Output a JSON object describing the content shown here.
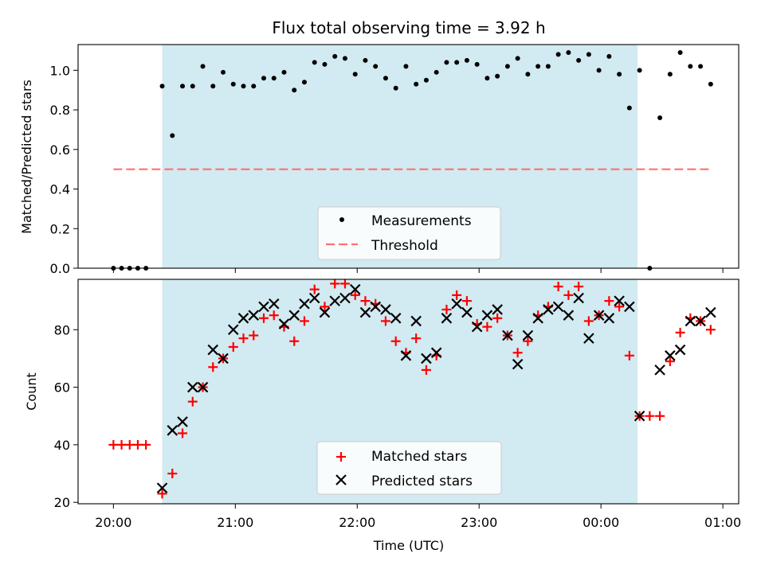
{
  "chart_data": [
    {
      "type": "scatter",
      "title": "Flux total observing time = 3.92 h",
      "xlabel": "",
      "ylabel": "Matched/Predicted stars",
      "ylim": [
        0,
        1.13
      ],
      "yticks": [
        "0.0",
        "0.2",
        "0.4",
        "0.6",
        "0.8",
        "1.0"
      ],
      "ytick_values": [
        0,
        0.2,
        0.4,
        0.6,
        0.8,
        1.0
      ],
      "xlim_hours": [
        19.71,
        25.13
      ],
      "xtick_hours": [
        20,
        21,
        22,
        23,
        24,
        25
      ],
      "shaded_span": {
        "start": "20:24",
        "end": "00:18",
        "color": "#add8e6"
      },
      "legend": {
        "placement": "lower center",
        "entries": [
          "Measurements",
          "Threshold"
        ]
      },
      "series": [
        {
          "name": "Measurements",
          "marker": "dot",
          "color": "#000000",
          "x": [
            "20:00",
            "20:04",
            "20:08",
            "20:12",
            "20:16",
            "20:24",
            "20:29",
            "20:34",
            "20:39",
            "20:44",
            "20:49",
            "20:54",
            "20:59",
            "21:04",
            "21:09",
            "21:14",
            "21:19",
            "21:24",
            "21:29",
            "21:34",
            "21:39",
            "21:44",
            "21:49",
            "21:54",
            "21:59",
            "22:04",
            "22:09",
            "22:14",
            "22:19",
            "22:24",
            "22:29",
            "22:34",
            "22:39",
            "22:44",
            "22:49",
            "22:54",
            "22:59",
            "23:04",
            "23:09",
            "23:14",
            "23:19",
            "23:24",
            "23:29",
            "23:34",
            "23:39",
            "23:44",
            "23:49",
            "23:54",
            "23:59",
            "00:04",
            "00:09",
            "00:14",
            "00:19",
            "00:24",
            "00:29",
            "00:34",
            "00:39",
            "00:44",
            "00:49",
            "00:54"
          ],
          "y": [
            0.0,
            0.0,
            0.0,
            0.0,
            0.0,
            0.92,
            0.67,
            0.92,
            0.92,
            1.02,
            0.92,
            0.99,
            0.93,
            0.92,
            0.92,
            0.96,
            0.96,
            0.99,
            0.9,
            0.94,
            1.04,
            1.03,
            1.07,
            1.06,
            0.98,
            1.05,
            1.02,
            0.96,
            0.91,
            1.02,
            0.93,
            0.95,
            0.99,
            1.04,
            1.04,
            1.05,
            1.03,
            0.96,
            0.97,
            1.02,
            1.06,
            0.98,
            1.02,
            1.02,
            1.08,
            1.09,
            1.05,
            1.08,
            1.0,
            1.07,
            0.98,
            0.81,
            1.0,
            0.0,
            0.76,
            0.98,
            1.09,
            1.02,
            1.02,
            0.93
          ]
        },
        {
          "name": "Threshold",
          "marker": "dashed-line",
          "color": "#ff7070",
          "x": [
            "20:00",
            "00:54"
          ],
          "y": [
            0.5,
            0.5
          ]
        }
      ]
    },
    {
      "type": "scatter",
      "title": "",
      "xlabel": "Time (UTC)",
      "ylabel": "Count",
      "ylim": [
        19.5,
        97.5
      ],
      "yticks": [
        "20",
        "40",
        "60",
        "80"
      ],
      "ytick_values": [
        20,
        40,
        60,
        80
      ],
      "xlim_hours": [
        19.71,
        25.13
      ],
      "xtick_hours": [
        20,
        21,
        22,
        23,
        24,
        25
      ],
      "xticks": [
        "20:00",
        "21:00",
        "22:00",
        "23:00",
        "00:00",
        "01:00"
      ],
      "shaded_span": {
        "start": "20:24",
        "end": "00:18",
        "color": "#add8e6"
      },
      "legend": {
        "placement": "lower center",
        "entries": [
          "Matched stars",
          "Predicted stars"
        ]
      },
      "series": [
        {
          "name": "Matched stars",
          "marker": "plus",
          "color": "#ff0000",
          "x": [
            "20:00",
            "20:04",
            "20:08",
            "20:12",
            "20:16",
            "20:24",
            "20:29",
            "20:34",
            "20:39",
            "20:44",
            "20:49",
            "20:54",
            "20:59",
            "21:04",
            "21:09",
            "21:14",
            "21:19",
            "21:24",
            "21:29",
            "21:34",
            "21:39",
            "21:44",
            "21:49",
            "21:54",
            "21:59",
            "22:04",
            "22:09",
            "22:14",
            "22:19",
            "22:24",
            "22:29",
            "22:34",
            "22:39",
            "22:44",
            "22:49",
            "22:54",
            "22:59",
            "23:04",
            "23:09",
            "23:14",
            "23:19",
            "23:24",
            "23:29",
            "23:34",
            "23:39",
            "23:44",
            "23:49",
            "23:54",
            "23:59",
            "00:04",
            "00:09",
            "00:14",
            "00:19",
            "00:24",
            "00:29",
            "00:34",
            "00:39",
            "00:44",
            "00:49",
            "00:54"
          ],
          "y": [
            40,
            40,
            40,
            40,
            40,
            23,
            30,
            44,
            55,
            60,
            67,
            70,
            74,
            77,
            78,
            84,
            85,
            81,
            76,
            83,
            94,
            88,
            96,
            96,
            92,
            90,
            89,
            83,
            76,
            72,
            77,
            66,
            71,
            87,
            92,
            90,
            82,
            81,
            84,
            78,
            72,
            76,
            85,
            88,
            95,
            92,
            95,
            83,
            85,
            90,
            88,
            71,
            50,
            50,
            50,
            69,
            79,
            84,
            83,
            80
          ]
        },
        {
          "name": "Predicted stars",
          "marker": "x",
          "color": "#000000",
          "x": [
            "20:24",
            "20:29",
            "20:34",
            "20:39",
            "20:44",
            "20:49",
            "20:54",
            "20:59",
            "21:04",
            "21:09",
            "21:14",
            "21:19",
            "21:24",
            "21:29",
            "21:34",
            "21:39",
            "21:44",
            "21:49",
            "21:54",
            "21:59",
            "22:04",
            "22:09",
            "22:14",
            "22:19",
            "22:24",
            "22:29",
            "22:34",
            "22:39",
            "22:44",
            "22:49",
            "22:54",
            "22:59",
            "23:04",
            "23:09",
            "23:14",
            "23:19",
            "23:24",
            "23:29",
            "23:34",
            "23:39",
            "23:44",
            "23:49",
            "23:54",
            "23:59",
            "00:04",
            "00:09",
            "00:14",
            "00:19",
            "00:29",
            "00:34",
            "00:39",
            "00:44",
            "00:49",
            "00:54"
          ],
          "y": [
            25,
            45,
            48,
            60,
            60,
            73,
            70,
            80,
            84,
            85,
            88,
            89,
            82,
            85,
            89,
            91,
            86,
            90,
            91,
            94,
            86,
            88,
            87,
            84,
            71,
            83,
            70,
            72,
            84,
            89,
            86,
            81,
            85,
            87,
            78,
            68,
            78,
            84,
            87,
            88,
            85,
            91,
            77,
            85,
            84,
            90,
            88,
            50,
            66,
            71,
            73,
            83,
            83,
            86
          ]
        }
      ]
    }
  ]
}
